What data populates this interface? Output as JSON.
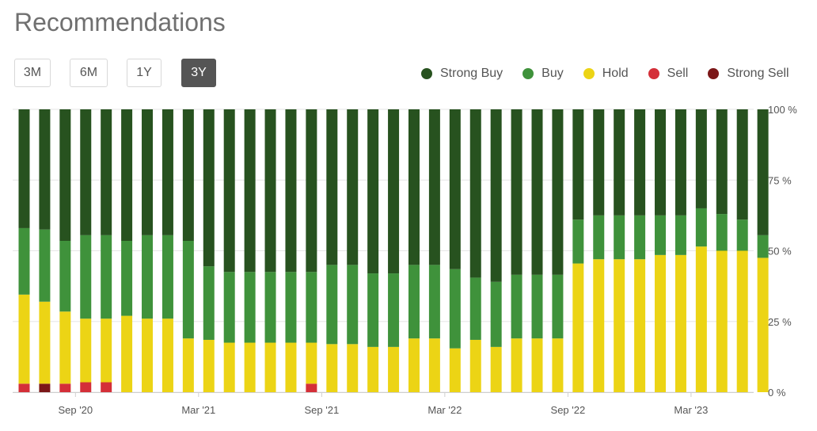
{
  "header": {
    "title": "Recommendations"
  },
  "range_buttons": [
    {
      "label": "3M",
      "active": false
    },
    {
      "label": "6M",
      "active": false
    },
    {
      "label": "1Y",
      "active": false
    },
    {
      "label": "3Y",
      "active": true
    }
  ],
  "colors": {
    "strong_buy": "#27521f",
    "buy": "#3f923b",
    "hold": "#ecd415",
    "sell": "#d42f38",
    "strong_sell": "#7b1718",
    "grid": "#e6e6e6"
  },
  "chart_data": {
    "type": "bar",
    "stacked": true,
    "title": "Recommendations",
    "y_unit": "%",
    "ylim": [
      0,
      100
    ],
    "y_ticks": [
      {
        "value": 0,
        "label": "0 %"
      },
      {
        "value": 25,
        "label": "25 %"
      },
      {
        "value": 50,
        "label": "50 %"
      },
      {
        "value": 75,
        "label": "75 %"
      },
      {
        "value": 100,
        "label": "100 %"
      }
    ],
    "x_ticks": [
      {
        "index": 2.5,
        "label": "Sep '20"
      },
      {
        "index": 8.5,
        "label": "Mar '21"
      },
      {
        "index": 14.5,
        "label": "Sep '21"
      },
      {
        "index": 20.5,
        "label": "Mar '22"
      },
      {
        "index": 26.5,
        "label": "Sep '22"
      },
      {
        "index": 32.5,
        "label": "Mar '23"
      }
    ],
    "legend_position": "top-right",
    "series": [
      {
        "name": "Strong Sell",
        "key": "strong_sell",
        "values": [
          0,
          3,
          0,
          0,
          0,
          0,
          0,
          0,
          0,
          0,
          0,
          0,
          0,
          0,
          0,
          0,
          0,
          0,
          0,
          0,
          0,
          0,
          0,
          0,
          0,
          0,
          0,
          0,
          0,
          0,
          0,
          0,
          0,
          0,
          0,
          0,
          0
        ]
      },
      {
        "name": "Sell",
        "key": "sell",
        "values": [
          3,
          0,
          3,
          3.5,
          3.5,
          0,
          0,
          0,
          0,
          0,
          0,
          0,
          0,
          0,
          3,
          0,
          0,
          0,
          0,
          0,
          0,
          0,
          0,
          0,
          0,
          0,
          0,
          0,
          0,
          0,
          0,
          0,
          0,
          0,
          0,
          0,
          0
        ]
      },
      {
        "name": "Hold",
        "key": "hold",
        "values": [
          31.5,
          29,
          25.5,
          22.5,
          22.5,
          27,
          26,
          26,
          19,
          18.5,
          17.5,
          17.5,
          17.5,
          17.5,
          14.5,
          17,
          17,
          16,
          16,
          19,
          19,
          15.5,
          18.5,
          16,
          19,
          19,
          19,
          45.5,
          47,
          47,
          47,
          48.5,
          48.5,
          51.5,
          50,
          50,
          47.5
        ]
      },
      {
        "name": "Buy",
        "key": "buy",
        "values": [
          23.5,
          25.5,
          25,
          29.5,
          29.5,
          26.5,
          29.5,
          29.5,
          34.5,
          26,
          25,
          25,
          25,
          25,
          25,
          28,
          28,
          26,
          26,
          26,
          26,
          28,
          22,
          23,
          22.5,
          22.5,
          22.5,
          15.5,
          15.5,
          15.5,
          15.5,
          14,
          14,
          13.5,
          13,
          11,
          8
        ]
      },
      {
        "name": "Strong Buy",
        "key": "strong_buy",
        "values": [
          42,
          42.5,
          46.5,
          44.5,
          44.5,
          46.5,
          44.5,
          44.5,
          46.5,
          55.5,
          57.5,
          57.5,
          57.5,
          57.5,
          57.5,
          55,
          55,
          58,
          58,
          55,
          55,
          56.5,
          59.5,
          61,
          58.5,
          58.5,
          58.5,
          39,
          37.5,
          37.5,
          37.5,
          37.5,
          37.5,
          35,
          37,
          39,
          44.5
        ]
      }
    ],
    "legend": [
      {
        "name": "Strong Buy",
        "key": "strong_buy"
      },
      {
        "name": "Buy",
        "key": "buy"
      },
      {
        "name": "Hold",
        "key": "hold"
      },
      {
        "name": "Sell",
        "key": "sell"
      },
      {
        "name": "Strong Sell",
        "key": "strong_sell"
      }
    ]
  }
}
